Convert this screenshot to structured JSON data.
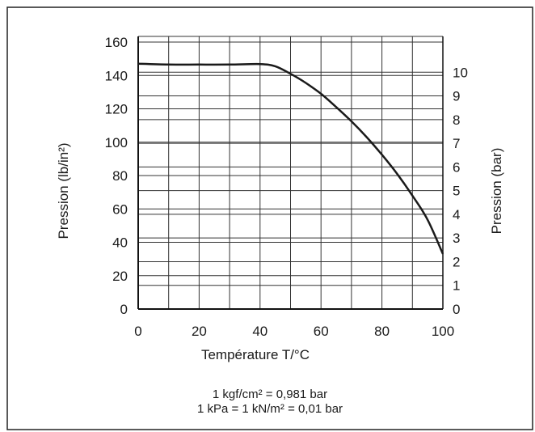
{
  "chart_data": {
    "type": "line",
    "x": [
      0,
      10,
      20,
      30,
      40,
      45,
      50,
      55,
      60,
      65,
      70,
      75,
      80,
      85,
      90,
      95,
      100
    ],
    "series": [
      {
        "values": [
          147,
          146.5,
          146.5,
          146.5,
          146.8,
          145.5,
          141,
          135.5,
          129,
          121,
          112.5,
          103,
          92.5,
          81,
          68,
          53.5,
          33
        ]
      }
    ],
    "xlabel": "Température T/°C",
    "ylabel_left": "Pression (lb/in²)",
    "ylabel_right": "Pression (bar)",
    "xlim": [
      0,
      100
    ],
    "ylim_left": [
      0,
      160
    ],
    "ylim_right": [
      0,
      11
    ],
    "x_ticks": [
      "0",
      "20",
      "40",
      "60",
      "80",
      "100"
    ],
    "y_left_ticks": [
      "0",
      "20",
      "40",
      "60",
      "80",
      "100",
      "120",
      "140",
      "160"
    ],
    "y_right_ticks": [
      "0",
      "1",
      "2",
      "3",
      "4",
      "5",
      "6",
      "7",
      "8",
      "9",
      "10"
    ],
    "grid": true,
    "line_color": "#1a1a1a",
    "notes": [
      "1 kgf/cm² = 0,981 bar",
      "1 kPa = 1 kN/m² = 0,01 bar"
    ]
  }
}
